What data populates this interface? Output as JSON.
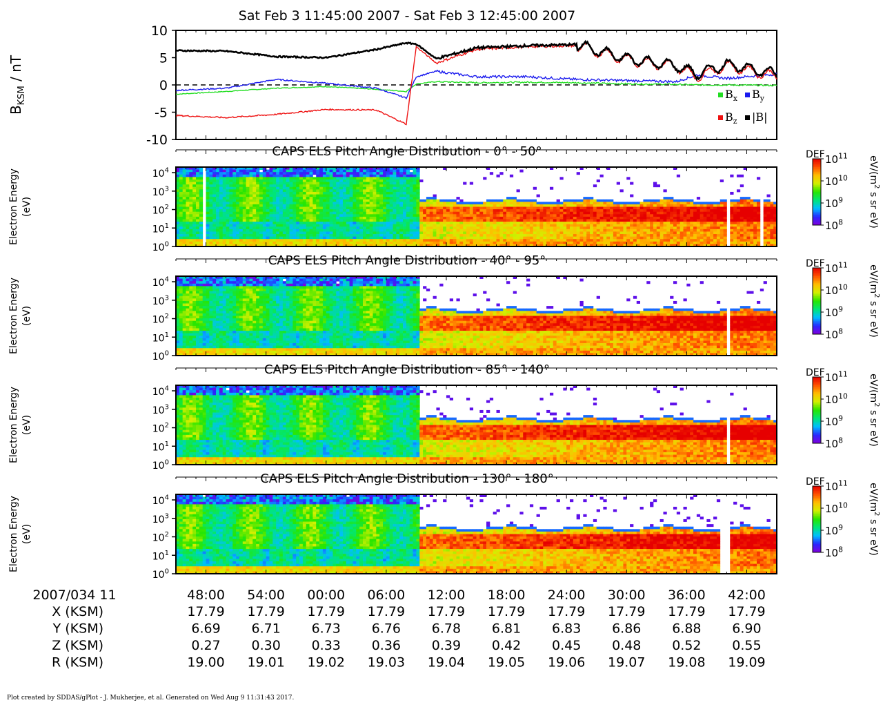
{
  "header": {
    "title": "Sat Feb 3 11:45:00 2007 - Sat Feb 3 12:45:00 2007"
  },
  "chart_data": [
    {
      "type": "line",
      "ylabel_main": "B",
      "ylabel_sub": "KSM",
      "ylabel_unit": " / nT",
      "ylim": [
        -10,
        10
      ],
      "yticks": [
        "10",
        "5",
        "0",
        "-5",
        "-10"
      ],
      "zero_line": "dashed",
      "legend_placement": "bottom-right",
      "x_minutes": [
        0,
        5,
        10,
        15,
        20,
        23,
        24,
        26,
        30,
        35,
        40,
        45,
        50,
        52,
        55,
        60
      ],
      "series": [
        {
          "name": "B",
          "sub": "x",
          "color": "#22dd22",
          "values": [
            -1.7,
            -1.2,
            -0.6,
            -0.3,
            -0.8,
            -1.2,
            0.2,
            0.6,
            0.4,
            0.5,
            0.4,
            0.2,
            0.1,
            0.0,
            0.0,
            -0.1
          ]
        },
        {
          "name": "B",
          "sub": "y",
          "color": "#1a1aee",
          "values": [
            -1.0,
            -0.6,
            1.0,
            0.3,
            -0.6,
            -2.4,
            1.5,
            2.5,
            1.5,
            1.5,
            1.0,
            0.8,
            0.6,
            1.8,
            1.2,
            2.0
          ]
        },
        {
          "name": "B",
          "sub": "z",
          "color": "#ee1111",
          "values": [
            -5.6,
            -6.0,
            -5.4,
            -4.5,
            -4.6,
            -7.2,
            7.0,
            4.0,
            6.5,
            7.0,
            7.2,
            4.6,
            3.3,
            1.5,
            3.5,
            1.5
          ]
        },
        {
          "name": "|B|",
          "sub": "",
          "color": "#000000",
          "values": [
            6.3,
            6.2,
            5.2,
            5.0,
            6.5,
            7.7,
            7.5,
            4.8,
            6.8,
            7.2,
            7.4,
            4.8,
            3.5,
            2.0,
            3.8,
            2.0
          ]
        }
      ]
    },
    {
      "type": "heatmap",
      "title": "CAPS ELS Pitch Angle Distribution - 0° - 50°",
      "ylabel_line1": "Electron Energy",
      "ylabel_line2": "(eV)",
      "yscale": "log",
      "ylim_ev": [
        1,
        20000
      ],
      "yticks": [
        {
          "b": "10",
          "e": "4"
        },
        {
          "b": "10",
          "e": "3"
        },
        {
          "b": "10",
          "e": "2"
        },
        {
          "b": "10",
          "e": "1"
        },
        {
          "b": "10",
          "e": "0"
        }
      ],
      "colorbar": {
        "label": "DEF",
        "unit_pre": "eV/(m",
        "unit_sup": "2",
        "unit_post": " s sr eV)",
        "ticks": [
          {
            "b": "10",
            "e": "11"
          },
          {
            "b": "10",
            "e": "10"
          },
          {
            "b": "10",
            "e": "9"
          },
          {
            "b": "10",
            "e": "8"
          }
        ],
        "range_log10": [
          8,
          11
        ]
      }
    },
    {
      "type": "heatmap",
      "title": "CAPS ELS Pitch Angle Distribution - 40° - 95°",
      "ylabel_line1": "Electron Energy",
      "ylabel_line2": "(eV)",
      "yscale": "log",
      "ylim_ev": [
        1,
        20000
      ],
      "yticks": [
        {
          "b": "10",
          "e": "4"
        },
        {
          "b": "10",
          "e": "3"
        },
        {
          "b": "10",
          "e": "2"
        },
        {
          "b": "10",
          "e": "1"
        },
        {
          "b": "10",
          "e": "0"
        }
      ],
      "colorbar": {
        "label": "DEF",
        "unit_pre": "eV/(m",
        "unit_sup": "2",
        "unit_post": " s sr eV)",
        "ticks": [
          {
            "b": "10",
            "e": "11"
          },
          {
            "b": "10",
            "e": "10"
          },
          {
            "b": "10",
            "e": "9"
          },
          {
            "b": "10",
            "e": "8"
          }
        ],
        "range_log10": [
          8,
          11
        ]
      }
    },
    {
      "type": "heatmap",
      "title": "CAPS ELS Pitch Angle Distribution - 85° - 140°",
      "ylabel_line1": "Electron Energy",
      "ylabel_line2": "(eV)",
      "yscale": "log",
      "ylim_ev": [
        1,
        20000
      ],
      "yticks": [
        {
          "b": "10",
          "e": "4"
        },
        {
          "b": "10",
          "e": "3"
        },
        {
          "b": "10",
          "e": "2"
        },
        {
          "b": "10",
          "e": "1"
        },
        {
          "b": "10",
          "e": "0"
        }
      ],
      "colorbar": {
        "label": "DEF",
        "unit_pre": "eV/(m",
        "unit_sup": "2",
        "unit_post": " s sr eV)",
        "ticks": [
          {
            "b": "10",
            "e": "11"
          },
          {
            "b": "10",
            "e": "10"
          },
          {
            "b": "10",
            "e": "9"
          },
          {
            "b": "10",
            "e": "8"
          }
        ],
        "range_log10": [
          8,
          11
        ]
      }
    },
    {
      "type": "heatmap",
      "title": "CAPS ELS Pitch Angle Distribution - 130° - 180°",
      "ylabel_line1": "Electron Energy",
      "ylabel_line2": "(eV)",
      "yscale": "log",
      "ylim_ev": [
        1,
        20000
      ],
      "yticks": [
        {
          "b": "10",
          "e": "4"
        },
        {
          "b": "10",
          "e": "3"
        },
        {
          "b": "10",
          "e": "2"
        },
        {
          "b": "10",
          "e": "1"
        },
        {
          "b": "10",
          "e": "0"
        }
      ],
      "colorbar": {
        "label": "DEF",
        "unit_pre": "eV/(m",
        "unit_sup": "2",
        "unit_post": " s sr eV)",
        "ticks": [
          {
            "b": "10",
            "e": "11"
          },
          {
            "b": "10",
            "e": "10"
          },
          {
            "b": "10",
            "e": "9"
          },
          {
            "b": "10",
            "e": "8"
          }
        ],
        "range_log10": [
          8,
          11
        ]
      }
    }
  ],
  "time_axis": {
    "start_label": "2007/034 11",
    "tick_labels": [
      "48:00",
      "54:00",
      "00:00",
      "06:00",
      "12:00",
      "18:00",
      "24:00",
      "30:00",
      "36:00",
      "42:00"
    ],
    "tick_minutes": [
      3,
      9,
      15,
      21,
      27,
      33,
      39,
      45,
      51,
      57
    ],
    "rows": [
      {
        "label": "X (KSM)",
        "values": [
          "17.79",
          "17.79",
          "17.79",
          "17.79",
          "17.79",
          "17.79",
          "17.79",
          "17.79",
          "17.79",
          "17.79"
        ]
      },
      {
        "label": "Y (KSM)",
        "values": [
          "6.69",
          "6.71",
          "6.73",
          "6.76",
          "6.78",
          "6.81",
          "6.83",
          "6.86",
          "6.88",
          "6.90"
        ]
      },
      {
        "label": "Z (KSM)",
        "values": [
          "0.27",
          "0.30",
          "0.33",
          "0.36",
          "0.39",
          "0.42",
          "0.45",
          "0.48",
          "0.52",
          "0.55"
        ]
      },
      {
        "label": "R (KSM)",
        "values": [
          "19.00",
          "19.01",
          "19.02",
          "19.03",
          "19.04",
          "19.05",
          "19.06",
          "19.07",
          "19.08",
          "19.09"
        ]
      }
    ]
  },
  "footer": {
    "text": "Plot created by SDDAS/gPlot - J. Mukherjee, et al.  Generated on Wed Aug 9 11:31:43 2017."
  }
}
